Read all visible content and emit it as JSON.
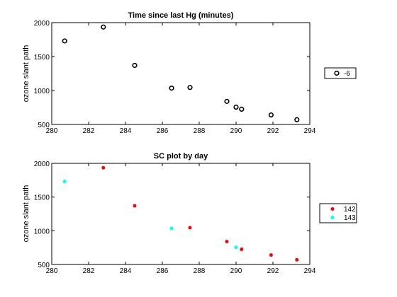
{
  "chart_data": [
    {
      "type": "scatter",
      "title": "Time since last Hg (minutes)",
      "xlabel": "",
      "ylabel": "ozone slant path",
      "xlim": [
        280,
        294
      ],
      "ylim": [
        500,
        2000
      ],
      "xticks": [
        280,
        282,
        284,
        286,
        288,
        290,
        292,
        294
      ],
      "yticks": [
        500,
        1000,
        1500,
        2000
      ],
      "grid": false,
      "legend_position": "outside-right",
      "series": [
        {
          "name": "-6",
          "marker": "open-circle",
          "color": "#000000",
          "x": [
            280.7,
            282.8,
            284.5,
            286.5,
            287.5,
            289.5,
            290.0,
            290.3,
            291.9,
            293.3
          ],
          "y": [
            1730,
            1935,
            1370,
            1035,
            1045,
            840,
            755,
            725,
            640,
            570
          ]
        }
      ]
    },
    {
      "type": "scatter",
      "title": "SC plot by day",
      "xlabel": "",
      "ylabel": "ozone slant path",
      "xlim": [
        280,
        294
      ],
      "ylim": [
        500,
        2000
      ],
      "xticks": [
        280,
        282,
        284,
        286,
        288,
        290,
        292,
        294
      ],
      "yticks": [
        500,
        1000,
        1500,
        2000
      ],
      "grid": false,
      "legend_position": "outside-right",
      "series": [
        {
          "name": "142",
          "marker": "filled-dot",
          "color": "#ff0000",
          "x": [
            282.8,
            284.5,
            287.5,
            289.5,
            290.3,
            291.9,
            293.3
          ],
          "y": [
            1935,
            1370,
            1045,
            840,
            725,
            640,
            570
          ]
        },
        {
          "name": "143",
          "marker": "filled-dot",
          "color": "#00ffff",
          "x": [
            280.7,
            286.5,
            290.0
          ],
          "y": [
            1730,
            1035,
            755
          ]
        }
      ]
    }
  ]
}
